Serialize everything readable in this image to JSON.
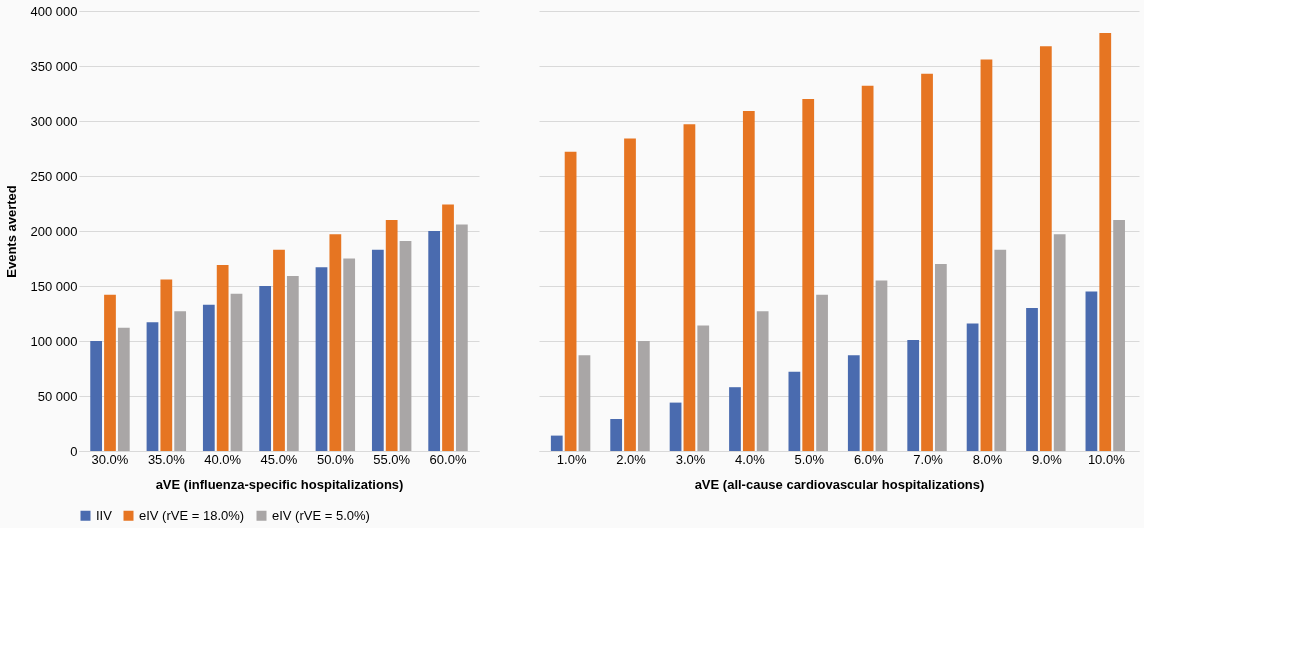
{
  "chart_data": [
    {
      "type": "bar",
      "xlabel": "aVE (influenza-specific hospitalizations)",
      "ylabel": "Events averted",
      "categories": [
        "30.0%",
        "35.0%",
        "40.0%",
        "45.0%",
        "50.0%",
        "55.0%",
        "60.0%"
      ],
      "series": [
        {
          "name": "IIV",
          "color": "#4a6baf",
          "values": [
            100000,
            117000,
            133000,
            150000,
            167000,
            183000,
            200000
          ]
        },
        {
          "name": "eIV (rVE = 18.0%)",
          "color": "#e67522",
          "values": [
            142000,
            156000,
            169000,
            183000,
            197000,
            210000,
            224000
          ]
        },
        {
          "name": "eIV (rVE = 5.0%)",
          "color": "#a9a6a6",
          "values": [
            112000,
            127000,
            143000,
            159000,
            175000,
            191000,
            206000
          ]
        }
      ],
      "ylim": [
        0,
        400000
      ],
      "yticks": [
        0,
        {
          "value": 50000,
          "label": "50 000"
        },
        {
          "value": 100000,
          "label": "100 000"
        },
        {
          "value": 150000,
          "label": "150 000"
        },
        {
          "value": 200000,
          "label": "200 000"
        },
        {
          "value": 250000,
          "label": "250 000"
        },
        {
          "value": 300000,
          "label": "300 000"
        },
        {
          "value": 350000,
          "label": "350 000"
        },
        {
          "value": 400000,
          "label": "400 000"
        }
      ],
      "grid": "y",
      "legend": "bottom"
    },
    {
      "type": "bar",
      "xlabel": "aVE (all-cause cardiovascular hospitalizations)",
      "categories": [
        "1.0%",
        "2.0%",
        "3.0%",
        "4.0%",
        "5.0%",
        "6.0%",
        "7.0%",
        "8.0%",
        "9.0%",
        "10.0%"
      ],
      "series": [
        {
          "name": "IIV",
          "color": "#4a6baf",
          "values": [
            14000,
            29000,
            44000,
            58000,
            72000,
            87000,
            101000,
            116000,
            130000,
            145000
          ]
        },
        {
          "name": "eIV (rVE = 18.0%)",
          "color": "#e67522",
          "values": [
            272000,
            284000,
            297000,
            309000,
            320000,
            332000,
            343000,
            356000,
            368000,
            380000
          ]
        },
        {
          "name": "eIV (rVE = 5.0%)",
          "color": "#a9a6a6",
          "values": [
            87000,
            100000,
            114000,
            127000,
            142000,
            155000,
            170000,
            183000,
            197000,
            210000
          ]
        }
      ],
      "ylim": [
        0,
        400000
      ],
      "yticks": [
        0,
        50000,
        100000,
        150000,
        200000,
        250000,
        300000,
        350000,
        400000
      ],
      "grid": "y",
      "tick_labels": "x"
    }
  ]
}
